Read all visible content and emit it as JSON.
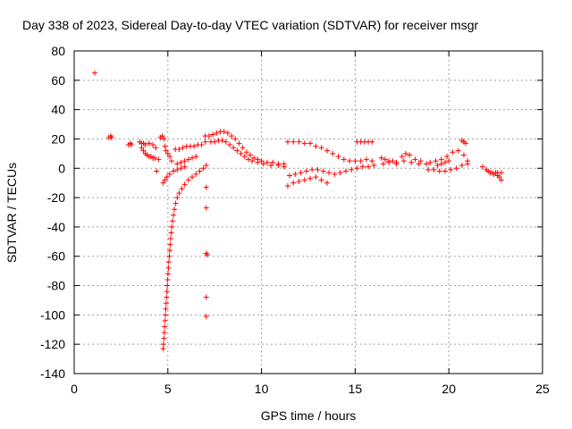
{
  "chart_data": {
    "type": "scatter",
    "title": "Day 338 of 2023, Sidereal Day-to-day VTEC variation (SDTVAR) for receiver msgr",
    "xlabel": "GPS time / hours",
    "ylabel": "SDTVAR / TECUs",
    "xlim": [
      0,
      25
    ],
    "ylim": [
      -140,
      80
    ],
    "xticks": [
      "0",
      "5",
      "10",
      "15",
      "20",
      "25"
    ],
    "yticks": [
      "80",
      "60",
      "40",
      "20",
      "0",
      "-20",
      "-40",
      "-60",
      "-80",
      "-100",
      "-120",
      "-140"
    ],
    "grid": true,
    "marker": "+",
    "color": "#ff0000",
    "series": [
      {
        "name": "SDTVAR",
        "points": [
          [
            1.1,
            65
          ],
          [
            1.85,
            21
          ],
          [
            1.95,
            22
          ],
          [
            2.0,
            21
          ],
          [
            2.9,
            16
          ],
          [
            3.0,
            17
          ],
          [
            3.05,
            16
          ],
          [
            3.5,
            18
          ],
          [
            3.6,
            17
          ],
          [
            3.7,
            17
          ],
          [
            3.8,
            16
          ],
          [
            4.0,
            17
          ],
          [
            4.2,
            16
          ],
          [
            4.35,
            14
          ],
          [
            3.6,
            14
          ],
          [
            3.7,
            12
          ],
          [
            3.8,
            10
          ],
          [
            3.9,
            9
          ],
          [
            4.0,
            8
          ],
          [
            4.1,
            8
          ],
          [
            4.2,
            7
          ],
          [
            4.3,
            7
          ],
          [
            4.5,
            6
          ],
          [
            4.4,
            -2
          ],
          [
            4.6,
            21
          ],
          [
            4.7,
            22
          ],
          [
            4.8,
            20
          ],
          [
            4.85,
            15
          ],
          [
            4.9,
            12
          ],
          [
            5.0,
            10
          ],
          [
            5.1,
            8
          ],
          [
            5.2,
            5
          ],
          [
            4.75,
            -10
          ],
          [
            4.85,
            -8
          ],
          [
            4.95,
            -6
          ],
          [
            5.1,
            -4
          ],
          [
            5.3,
            -2
          ],
          [
            5.5,
            -1
          ],
          [
            5.7,
            0
          ],
          [
            5.9,
            1
          ],
          [
            5.4,
            13
          ],
          [
            5.6,
            13
          ],
          [
            5.8,
            14
          ],
          [
            6.0,
            15
          ],
          [
            6.2,
            15
          ],
          [
            6.4,
            15
          ],
          [
            6.6,
            16
          ],
          [
            6.8,
            16
          ],
          [
            7.0,
            18
          ],
          [
            5.5,
            3
          ],
          [
            5.7,
            4
          ],
          [
            5.9,
            5
          ],
          [
            6.1,
            6
          ],
          [
            6.3,
            7
          ],
          [
            6.5,
            8
          ],
          [
            4.75,
            -123
          ],
          [
            4.77,
            -120
          ],
          [
            4.79,
            -116
          ],
          [
            4.81,
            -112
          ],
          [
            4.83,
            -108
          ],
          [
            4.85,
            -104
          ],
          [
            4.87,
            -100
          ],
          [
            4.89,
            -96
          ],
          [
            4.91,
            -92
          ],
          [
            4.93,
            -88
          ],
          [
            4.95,
            -84
          ],
          [
            4.97,
            -80
          ],
          [
            4.99,
            -76
          ],
          [
            5.01,
            -72
          ],
          [
            5.03,
            -68
          ],
          [
            5.05,
            -64
          ],
          [
            5.08,
            -60
          ],
          [
            5.1,
            -56
          ],
          [
            5.12,
            -52
          ],
          [
            5.15,
            -48
          ],
          [
            5.18,
            -44
          ],
          [
            5.21,
            -40
          ],
          [
            5.25,
            -36
          ],
          [
            5.3,
            -32
          ],
          [
            5.35,
            -28
          ],
          [
            5.42,
            -24
          ],
          [
            5.5,
            -20
          ],
          [
            5.6,
            -17
          ],
          [
            5.75,
            -14
          ],
          [
            5.9,
            -11
          ],
          [
            6.1,
            -8
          ],
          [
            6.3,
            -6
          ],
          [
            6.5,
            -4
          ],
          [
            6.7,
            -2
          ],
          [
            6.9,
            0
          ],
          [
            7.05,
            2
          ],
          [
            7.05,
            -13
          ],
          [
            7.05,
            -27
          ],
          [
            7.05,
            -58
          ],
          [
            7.1,
            -59
          ],
          [
            7.05,
            -88
          ],
          [
            7.05,
            -101
          ],
          [
            7.0,
            22
          ],
          [
            7.2,
            22
          ],
          [
            7.4,
            23
          ],
          [
            7.6,
            24
          ],
          [
            7.8,
            25
          ],
          [
            8.0,
            25
          ],
          [
            8.2,
            24
          ],
          [
            8.4,
            22
          ],
          [
            8.6,
            20
          ],
          [
            8.8,
            17
          ],
          [
            9.0,
            14
          ],
          [
            9.2,
            11
          ],
          [
            9.4,
            9
          ],
          [
            9.6,
            7
          ],
          [
            9.8,
            6
          ],
          [
            10.0,
            5
          ],
          [
            10.3,
            4
          ],
          [
            10.6,
            4
          ],
          [
            10.9,
            3
          ],
          [
            11.2,
            3
          ],
          [
            7.3,
            18
          ],
          [
            7.5,
            18
          ],
          [
            7.7,
            19
          ],
          [
            7.9,
            19
          ],
          [
            8.1,
            18
          ],
          [
            8.3,
            16
          ],
          [
            8.5,
            14
          ],
          [
            8.7,
            12
          ],
          [
            8.9,
            10
          ],
          [
            9.1,
            8
          ],
          [
            9.3,
            6
          ],
          [
            9.5,
            5
          ],
          [
            9.8,
            4
          ],
          [
            10.1,
            3
          ],
          [
            10.5,
            2
          ],
          [
            10.9,
            2
          ],
          [
            11.2,
            1
          ],
          [
            11.4,
            18
          ],
          [
            11.7,
            18
          ],
          [
            12.0,
            18
          ],
          [
            12.3,
            17
          ],
          [
            12.6,
            17
          ],
          [
            12.9,
            15
          ],
          [
            13.2,
            14
          ],
          [
            13.5,
            12
          ],
          [
            13.8,
            10
          ],
          [
            14.1,
            8
          ],
          [
            14.4,
            6
          ],
          [
            14.7,
            5
          ],
          [
            15.0,
            5
          ],
          [
            15.3,
            5
          ],
          [
            15.6,
            6
          ],
          [
            15.9,
            5
          ],
          [
            15.1,
            18
          ],
          [
            15.3,
            18
          ],
          [
            15.5,
            18
          ],
          [
            15.7,
            18
          ],
          [
            15.9,
            18
          ],
          [
            11.4,
            -12
          ],
          [
            11.7,
            -10
          ],
          [
            12.0,
            -9
          ],
          [
            12.3,
            -8
          ],
          [
            12.6,
            -7
          ],
          [
            12.9,
            -6
          ],
          [
            13.2,
            -8
          ],
          [
            13.5,
            -10
          ],
          [
            11.5,
            -5
          ],
          [
            11.8,
            -4
          ],
          [
            12.1,
            -3
          ],
          [
            12.4,
            -2
          ],
          [
            12.7,
            -1
          ],
          [
            13.0,
            -1
          ],
          [
            13.3,
            -2
          ],
          [
            13.6,
            -3
          ],
          [
            13.9,
            -4
          ],
          [
            14.2,
            -3
          ],
          [
            14.5,
            -2
          ],
          [
            14.8,
            -1
          ],
          [
            15.1,
            0
          ],
          [
            15.4,
            1
          ],
          [
            15.7,
            1
          ],
          [
            16.0,
            2
          ],
          [
            16.4,
            7
          ],
          [
            16.6,
            6
          ],
          [
            16.8,
            5
          ],
          [
            17.0,
            5
          ],
          [
            17.2,
            4
          ],
          [
            17.5,
            8
          ],
          [
            17.7,
            10
          ],
          [
            17.9,
            9
          ],
          [
            18.2,
            6
          ],
          [
            18.5,
            5
          ],
          [
            16.5,
            3
          ],
          [
            16.8,
            4
          ],
          [
            17.2,
            3
          ],
          [
            17.6,
            5
          ],
          [
            18.0,
            4
          ],
          [
            18.4,
            3
          ],
          [
            18.8,
            3
          ],
          [
            19.0,
            4
          ],
          [
            19.3,
            5
          ],
          [
            19.6,
            6
          ],
          [
            19.9,
            8
          ],
          [
            20.2,
            11
          ],
          [
            20.5,
            12
          ],
          [
            20.8,
            9
          ],
          [
            21.0,
            5
          ],
          [
            18.9,
            -1
          ],
          [
            19.2,
            -1
          ],
          [
            19.5,
            -2
          ],
          [
            19.8,
            -2
          ],
          [
            20.1,
            -1
          ],
          [
            20.4,
            0
          ],
          [
            20.7,
            2
          ],
          [
            21.0,
            3
          ],
          [
            19.4,
            2
          ],
          [
            19.6,
            3
          ],
          [
            19.8,
            4
          ],
          [
            20.0,
            5
          ],
          [
            20.7,
            19
          ],
          [
            20.8,
            18
          ],
          [
            20.9,
            17
          ],
          [
            21.8,
            1
          ],
          [
            22.0,
            -1
          ],
          [
            22.2,
            -3
          ],
          [
            22.4,
            -4
          ],
          [
            22.6,
            -5
          ],
          [
            22.7,
            -6
          ],
          [
            22.8,
            -8
          ],
          [
            22.1,
            -2
          ],
          [
            22.3,
            -3
          ],
          [
            22.5,
            -3
          ],
          [
            22.6,
            -3
          ],
          [
            22.8,
            -3
          ]
        ]
      }
    ]
  }
}
